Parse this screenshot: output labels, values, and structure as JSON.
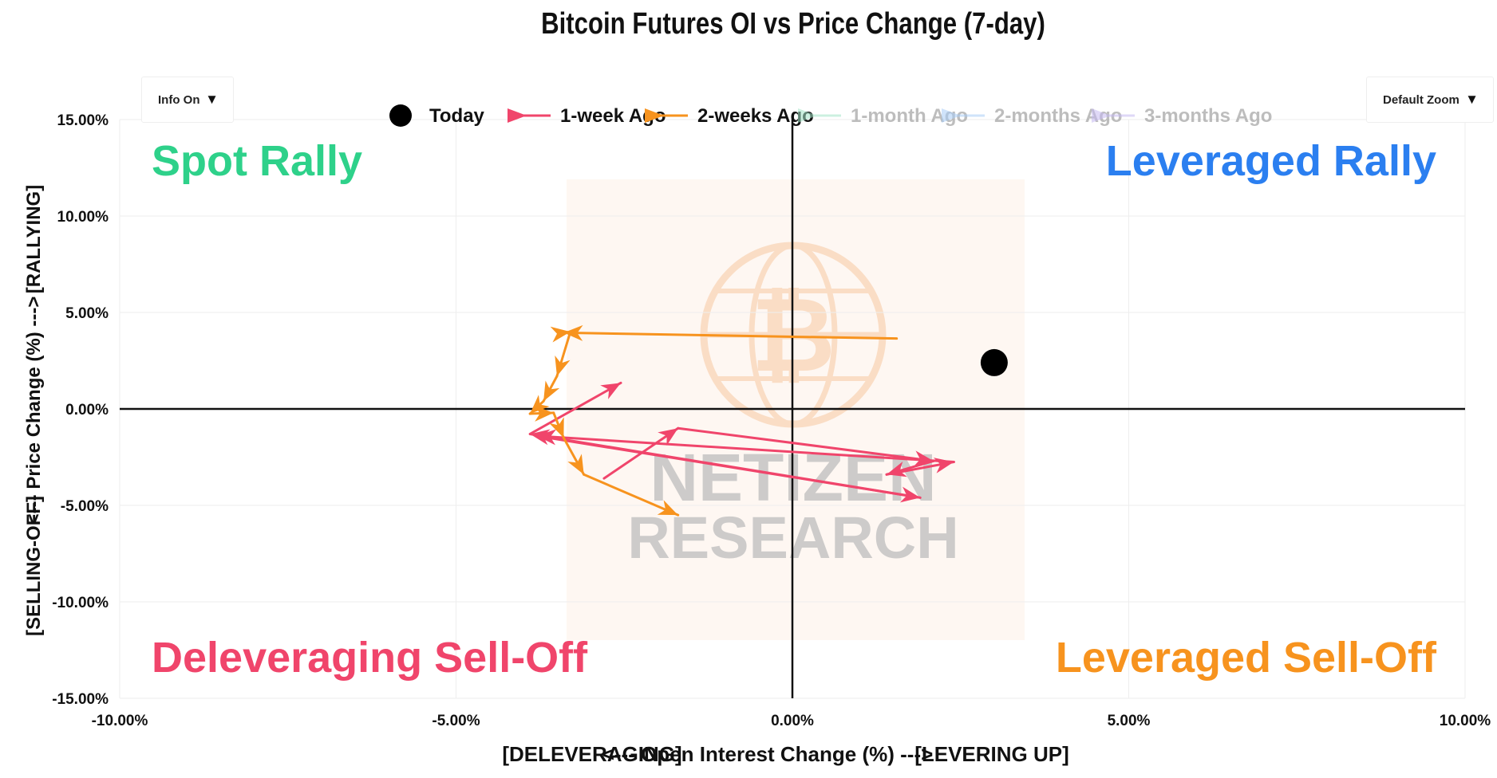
{
  "controls": {
    "info_toggle": {
      "label": "Info On",
      "caret": "▼"
    },
    "zoom_select": {
      "label": "Default Zoom",
      "caret": "▼"
    }
  },
  "watermark": {
    "line1": "NETIZEN",
    "line2": "RESEARCH",
    "logo_icon": "bitcoin-globe-icon"
  },
  "chart_data": {
    "type": "scatter",
    "title": "Bitcoin Futures OI vs Price Change (7-day)",
    "xlabel_parts": [
      "[DELEVERAGING]",
      "<---  Open Interest Change (%)  --->",
      "[LEVERING UP]"
    ],
    "ylabel_parts": [
      "[SELLING-OFF]",
      "<---  Price Change (%)  --->",
      "[RALLYING]"
    ],
    "xlim": [
      -10,
      10
    ],
    "ylim": [
      -15,
      15
    ],
    "x_ticks": [
      -10,
      -5,
      0,
      5,
      10
    ],
    "x_tick_labels": [
      "-10.00%",
      "-5.00%",
      "0.00%",
      "5.00%",
      "10.00%"
    ],
    "y_ticks": [
      15,
      10,
      5,
      0,
      -5,
      -10,
      -15
    ],
    "y_tick_labels": [
      "15.00%",
      "10.00%",
      "5.00%",
      "0.00%",
      "-5.00%",
      "-10.00%",
      "-15.00%"
    ],
    "grid": true,
    "legend_position": "top",
    "quadrants": [
      {
        "label": "Spot Rally",
        "position": "top-left",
        "color": "#2ed18a"
      },
      {
        "label": "Leveraged Rally",
        "position": "top-right",
        "color": "#2b7ff0"
      },
      {
        "label": "Deleveraging Sell-Off",
        "position": "bottom-left",
        "color": "#f0456b"
      },
      {
        "label": "Leveraged Sell-Off",
        "position": "bottom-right",
        "color": "#f7931e"
      }
    ],
    "series": [
      {
        "name": "Today",
        "color": "#000000",
        "marker": "dot",
        "active": true,
        "x": [
          3.0
        ],
        "y": [
          2.4
        ]
      },
      {
        "name": "1-week Ago",
        "color": "#f0456b",
        "marker": "arrow",
        "active": true,
        "x": [
          -2.8,
          -1.7,
          2.1,
          1.4,
          2.4,
          -3.8,
          1.9,
          -3.9,
          -2.55
        ],
        "y": [
          -3.6,
          -1.0,
          -2.7,
          -3.4,
          -2.75,
          -1.4,
          -4.6,
          -1.3,
          1.35
        ]
      },
      {
        "name": "2-weeks Ago",
        "color": "#f7931e",
        "marker": "arrow",
        "active": true,
        "x": [
          1.55,
          -3.4,
          -3.3,
          -3.5,
          -3.7,
          -3.9,
          -3.55,
          -3.4,
          -3.1,
          -1.7
        ],
        "y": [
          3.65,
          3.95,
          4.0,
          1.7,
          0.4,
          -0.25,
          -0.2,
          -1.5,
          -3.4,
          -5.5
        ]
      },
      {
        "name": "1-month Ago",
        "color": "#a3e4c7",
        "marker": "arrow",
        "active": false,
        "x": [],
        "y": []
      },
      {
        "name": "2-months Ago",
        "color": "#a8cdf7",
        "marker": "arrow",
        "active": false,
        "x": [],
        "y": []
      },
      {
        "name": "3-months Ago",
        "color": "#c5b9f2",
        "marker": "arrow",
        "active": false,
        "x": [],
        "y": []
      }
    ]
  }
}
